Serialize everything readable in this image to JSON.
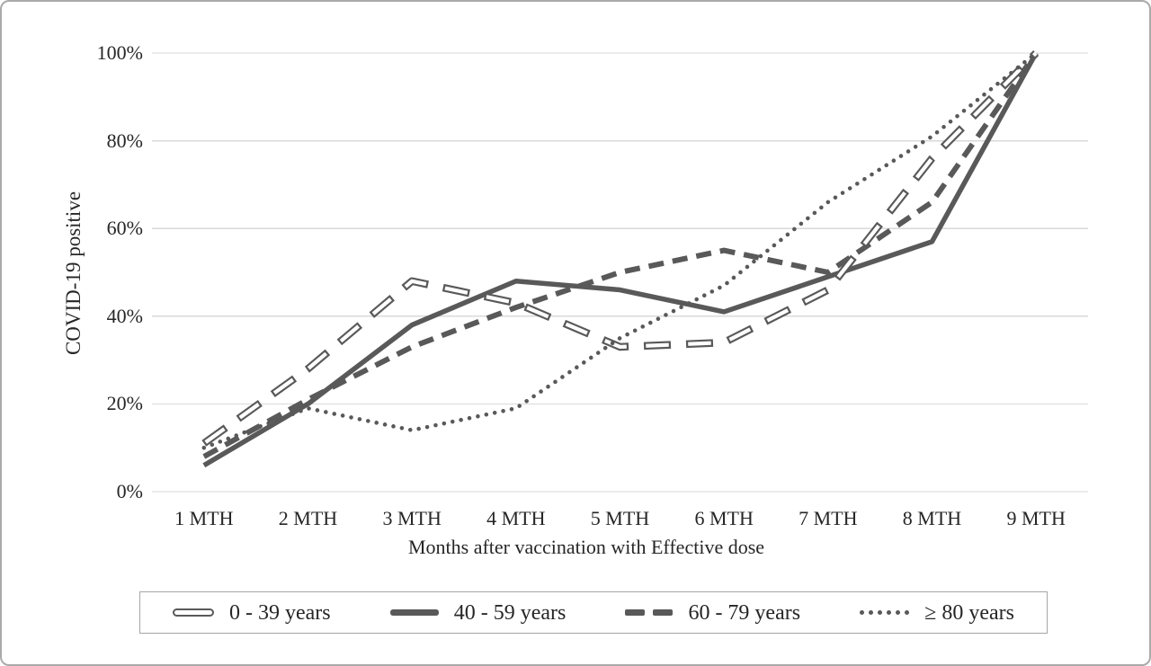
{
  "chart_data": {
    "type": "line",
    "categories": [
      "1 MTH",
      "2 MTH",
      "3 MTH",
      "4 MTH",
      "5 MTH",
      "6 MTH",
      "7 MTH",
      "8 MTH",
      "9 MTH"
    ],
    "series": [
      {
        "name": "0 - 39 years",
        "style": "outlined-dash",
        "values": [
          11,
          28,
          48,
          43,
          33,
          34,
          46,
          76,
          100
        ]
      },
      {
        "name": "40 - 59 years",
        "style": "solid",
        "values": [
          6,
          20,
          38,
          48,
          46,
          41,
          49,
          57,
          100
        ]
      },
      {
        "name": "60 - 79 years",
        "style": "dashed",
        "values": [
          8,
          21,
          33,
          42,
          50,
          55,
          50,
          66,
          100
        ]
      },
      {
        "name": "≥ 80 years",
        "style": "dotted",
        "values": [
          10,
          19,
          14,
          19,
          35,
          47,
          66,
          81,
          100
        ]
      }
    ],
    "title": "",
    "xlabel": "Months after vaccination with Effective dose",
    "ylabel": "COVID-19 positive",
    "ylim": [
      0,
      100
    ],
    "y_tick_step": 20,
    "y_tick_labels": [
      "0%",
      "20%",
      "40%",
      "60%",
      "80%",
      "100%"
    ],
    "grid": true,
    "legend_position": "bottom-box",
    "line_color": "#595959",
    "grid_color": "#d9d9d9"
  }
}
